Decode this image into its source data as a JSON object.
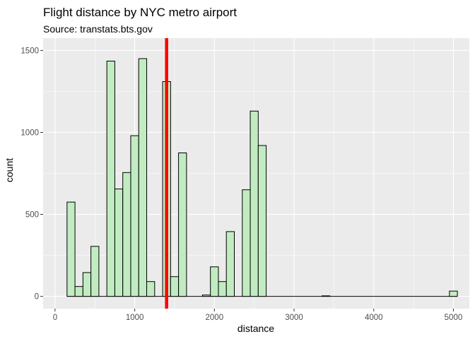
{
  "chart_data": {
    "type": "histogram",
    "title": "Flight distance by NYC metro airport",
    "subtitle": "Source: transtats.bts.gov",
    "xlabel": "distance",
    "ylabel": "count",
    "xlim": [
      -150,
      5200
    ],
    "ylim": [
      -75,
      1575
    ],
    "x_ticks": [
      0,
      1000,
      2000,
      3000,
      4000,
      5000
    ],
    "x_tick_labels": [
      "0",
      "1000",
      "2000",
      "3000",
      "4000",
      "5000"
    ],
    "y_ticks": [
      0,
      500,
      1000,
      1500
    ],
    "y_tick_labels": [
      "0",
      "500",
      "1000",
      "1500"
    ],
    "bin_width": 100,
    "bins": [
      {
        "x": 200,
        "count": 575
      },
      {
        "x": 300,
        "count": 60
      },
      {
        "x": 400,
        "count": 145
      },
      {
        "x": 500,
        "count": 305
      },
      {
        "x": 600,
        "count": 0
      },
      {
        "x": 700,
        "count": 1435
      },
      {
        "x": 800,
        "count": 655
      },
      {
        "x": 900,
        "count": 755
      },
      {
        "x": 1000,
        "count": 980
      },
      {
        "x": 1100,
        "count": 1450
      },
      {
        "x": 1200,
        "count": 90
      },
      {
        "x": 1300,
        "count": 0
      },
      {
        "x": 1400,
        "count": 1310
      },
      {
        "x": 1500,
        "count": 120
      },
      {
        "x": 1600,
        "count": 875
      },
      {
        "x": 1700,
        "count": 0
      },
      {
        "x": 1800,
        "count": 0
      },
      {
        "x": 1900,
        "count": 8
      },
      {
        "x": 2000,
        "count": 180
      },
      {
        "x": 2100,
        "count": 90
      },
      {
        "x": 2200,
        "count": 395
      },
      {
        "x": 2300,
        "count": 0
      },
      {
        "x": 2400,
        "count": 650
      },
      {
        "x": 2500,
        "count": 1130
      },
      {
        "x": 2600,
        "count": 920
      },
      {
        "x": 3400,
        "count": 3
      },
      {
        "x": 5000,
        "count": 32
      }
    ],
    "baseline_extent": [
      150,
      5050
    ],
    "reference_line": {
      "x": 1400,
      "color": "#ff0000"
    },
    "colors": {
      "panel": "#ebebeb",
      "grid_major": "#ffffff",
      "bar_fill": "#c1ecc1",
      "bar_stroke": "#000000"
    },
    "grid": true,
    "legend": "none"
  }
}
